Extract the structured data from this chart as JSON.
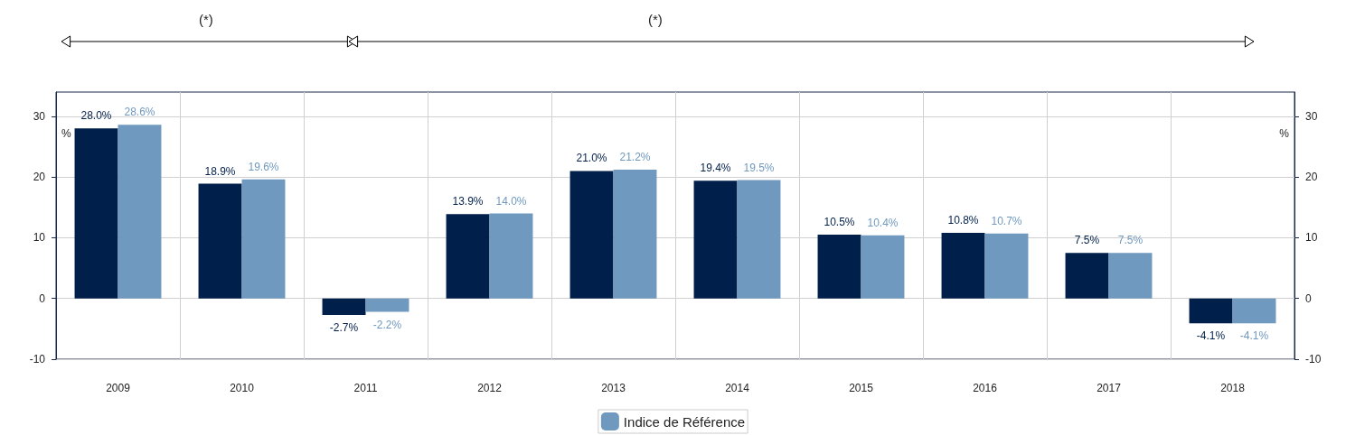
{
  "chart_data": {
    "type": "bar",
    "categories": [
      "2009",
      "2010",
      "2011",
      "2012",
      "2013",
      "2014",
      "2015",
      "2016",
      "2017",
      "2018"
    ],
    "series": [
      {
        "color": "#001f4b",
        "values": [
          28.0,
          18.9,
          -2.7,
          13.9,
          21.0,
          19.4,
          10.5,
          10.8,
          7.5,
          -4.1
        ],
        "value_labels": [
          "28.0%",
          "18.9%",
          "-2.7%",
          "13.9%",
          "21.0%",
          "19.4%",
          "10.5%",
          "10.8%",
          "7.5%",
          "-4.1%"
        ]
      },
      {
        "name": "Indice de Référence",
        "color": "#7099bf",
        "values": [
          28.6,
          19.6,
          -2.2,
          14.0,
          21.2,
          19.5,
          10.4,
          10.7,
          7.5,
          -4.1
        ],
        "value_labels": [
          "28.6%",
          "19.6%",
          "-2.2%",
          "14.0%",
          "21.2%",
          "19.5%",
          "10.4%",
          "10.7%",
          "7.5%",
          "-4.1%"
        ]
      }
    ],
    "ylabel": "%",
    "y2label": "%",
    "ylim": [
      -10,
      34
    ],
    "yticks": [
      -10,
      0,
      10,
      20,
      30
    ],
    "y2lim": [
      -10,
      34
    ],
    "y2ticks": [
      -10,
      0,
      10,
      20,
      30
    ],
    "grid": true,
    "legend": "bottom",
    "annotations": [
      "(*)",
      "(*)"
    ]
  }
}
